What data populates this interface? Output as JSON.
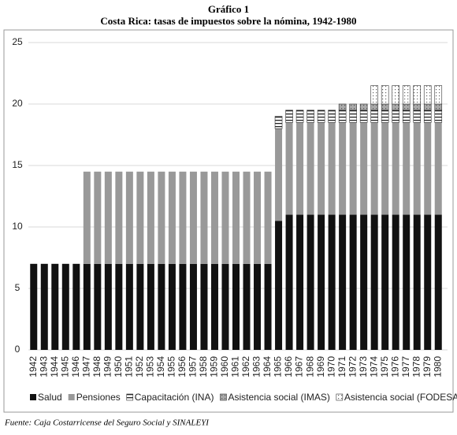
{
  "chart_data": {
    "type": "stacked-bar",
    "title": "Gráfico 1",
    "subtitle": "Costa Rica: tasas de impuestos sobre la nómina, 1942-1980",
    "source": "Fuente: Caja Costarricense del Seguro Social y SINALEYI",
    "categories": [
      "1942",
      "1943",
      "1944",
      "1945",
      "1946",
      "1947",
      "1948",
      "1949",
      "1950",
      "1951",
      "1952",
      "1953",
      "1954",
      "1955",
      "1956",
      "1957",
      "1958",
      "1959",
      "1960",
      "1961",
      "1962",
      "1963",
      "1964",
      "1965",
      "1966",
      "1967",
      "1968",
      "1969",
      "1970",
      "1971",
      "1972",
      "1973",
      "1974",
      "1975",
      "1976",
      "1977",
      "1978",
      "1979",
      "1980"
    ],
    "series": [
      {
        "name": "Salud",
        "color": "#111111",
        "values": [
          7,
          7,
          7,
          7,
          7,
          7,
          7,
          7,
          7,
          7,
          7,
          7,
          7,
          7,
          7,
          7,
          7,
          7,
          7,
          7,
          7,
          7,
          7,
          10.5,
          11,
          11,
          11,
          11,
          11,
          11,
          11,
          11,
          11,
          11,
          11,
          11,
          11,
          11,
          11
        ]
      },
      {
        "name": "Pensiones",
        "color": "#999999",
        "values": [
          0,
          0,
          0,
          0,
          0,
          7.5,
          7.5,
          7.5,
          7.5,
          7.5,
          7.5,
          7.5,
          7.5,
          7.5,
          7.5,
          7.5,
          7.5,
          7.5,
          7.5,
          7.5,
          7.5,
          7.5,
          7.5,
          7.5,
          7.5,
          7.5,
          7.5,
          7.5,
          7.5,
          7.5,
          7.5,
          7.5,
          7.5,
          7.5,
          7.5,
          7.5,
          7.5,
          7.5,
          7.5
        ]
      },
      {
        "name": "Capacitación (INA)",
        "color": "#222222",
        "values": [
          0,
          0,
          0,
          0,
          0,
          0,
          0,
          0,
          0,
          0,
          0,
          0,
          0,
          0,
          0,
          0,
          0,
          0,
          0,
          0,
          0,
          0,
          0,
          1,
          1,
          1,
          1,
          1,
          1,
          1,
          1,
          1,
          1,
          1,
          1,
          1,
          1,
          1,
          1
        ]
      },
      {
        "name": "Asistencia social  (IMAS)",
        "color": "#555555",
        "values": [
          0,
          0,
          0,
          0,
          0,
          0,
          0,
          0,
          0,
          0,
          0,
          0,
          0,
          0,
          0,
          0,
          0,
          0,
          0,
          0,
          0,
          0,
          0,
          0,
          0,
          0,
          0,
          0,
          0,
          0.5,
          0.5,
          0.5,
          0.5,
          0.5,
          0.5,
          0.5,
          0.5,
          0.5,
          0.5
        ]
      },
      {
        "name": "Asistencia social (FODESAF)",
        "color": "#666666",
        "values": [
          0,
          0,
          0,
          0,
          0,
          0,
          0,
          0,
          0,
          0,
          0,
          0,
          0,
          0,
          0,
          0,
          0,
          0,
          0,
          0,
          0,
          0,
          0,
          0,
          0,
          0,
          0,
          0,
          0,
          0,
          0,
          0,
          1.5,
          1.5,
          1.5,
          1.5,
          1.5,
          1.5,
          1.5
        ]
      }
    ],
    "ylim": [
      0,
      25
    ],
    "yticks": [
      0,
      5,
      10,
      15,
      20,
      25
    ],
    "grid": true
  }
}
